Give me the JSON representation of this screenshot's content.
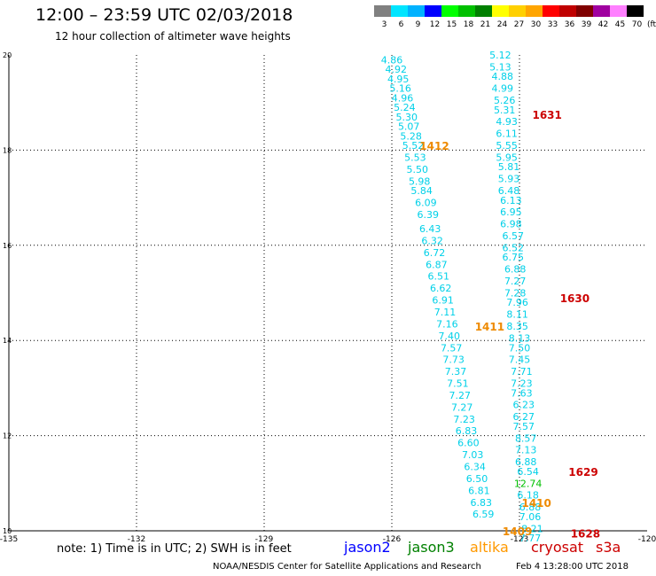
{
  "header": {
    "title": "12:00 – 23:59 UTC 02/03/2018",
    "subtitle": "12 hour collection of altimeter wave heights"
  },
  "colorbar": {
    "unit": "(ft)",
    "ticks": [
      "3",
      "6",
      "9",
      "12",
      "15",
      "18",
      "21",
      "24",
      "27",
      "30",
      "33",
      "36",
      "39",
      "42",
      "45",
      "70"
    ],
    "colors": [
      "#808080",
      "#00e5ff",
      "#00b2ff",
      "#0000ff",
      "#00ff00",
      "#00c000",
      "#008000",
      "#ffff00",
      "#ffd000",
      "#ffa500",
      "#ff0000",
      "#c00000",
      "#800000",
      "#a000a0",
      "#ff80ff",
      "#000000"
    ]
  },
  "footer": {
    "note": "note:  1) Time is in UTC;  2) SWH is in feet",
    "satellites": [
      {
        "name": "jason2",
        "color": "#0000ff"
      },
      {
        "name": "jason3",
        "color": "#008000"
      },
      {
        "name": "altika",
        "color": "#ff9900"
      },
      {
        "name": "cryosat",
        "color": "#cc0000"
      },
      {
        "name": "s3a",
        "color": "#cc0000"
      }
    ],
    "credit": "NOAA/NESDIS Center for Satellite Applications and Research",
    "generated": "Feb  4 13:28:00 UTC 2018"
  },
  "chart_data": {
    "type": "scatter",
    "title": "12:00 – 23:59 UTC 02/03/2018",
    "subtitle": "12 hour collection of altimeter wave heights",
    "xlabel": "",
    "ylabel": "",
    "xlim": [
      -135,
      -120
    ],
    "ylim": [
      10,
      20
    ],
    "x_ticks": [
      "-135",
      "-132",
      "-129",
      "-126",
      "-123",
      "-120"
    ],
    "y_ticks": [
      "10",
      "12",
      "14",
      "16",
      "18",
      "20"
    ],
    "grid": true,
    "series": [
      {
        "name": "altika",
        "color": "#00d0e8",
        "points": [
          {
            "x": -126.0,
            "y": 19.9,
            "label": "4.86"
          },
          {
            "x": -125.9,
            "y": 19.7,
            "label": "4.92"
          },
          {
            "x": -125.85,
            "y": 19.5,
            "label": "4.95"
          },
          {
            "x": -125.8,
            "y": 19.3,
            "label": "5.16"
          },
          {
            "x": -125.75,
            "y": 19.1,
            "label": "4.96"
          },
          {
            "x": -125.7,
            "y": 18.9,
            "label": "5.24"
          },
          {
            "x": -125.65,
            "y": 18.7,
            "label": "5.30"
          },
          {
            "x": -125.6,
            "y": 18.5,
            "label": "5.07"
          },
          {
            "x": -125.55,
            "y": 18.3,
            "label": "5.28"
          },
          {
            "x": -125.5,
            "y": 18.1,
            "label": "5.52"
          },
          {
            "x": -125.45,
            "y": 17.85,
            "label": "5.53"
          },
          {
            "x": -125.4,
            "y": 17.6,
            "label": "5.50"
          },
          {
            "x": -125.35,
            "y": 17.35,
            "label": "5.98"
          },
          {
            "x": -125.3,
            "y": 17.15,
            "label": "5.84"
          },
          {
            "x": -125.2,
            "y": 16.9,
            "label": "6.09"
          },
          {
            "x": -125.15,
            "y": 16.65,
            "label": "6.39"
          },
          {
            "x": -125.1,
            "y": 16.35,
            "label": "6.43"
          },
          {
            "x": -125.05,
            "y": 16.1,
            "label": "6.32"
          },
          {
            "x": -125.0,
            "y": 15.85,
            "label": "6.72"
          },
          {
            "x": -124.95,
            "y": 15.6,
            "label": "6.87"
          },
          {
            "x": -124.9,
            "y": 15.35,
            "label": "6.51"
          },
          {
            "x": -124.85,
            "y": 15.1,
            "label": "6.62"
          },
          {
            "x": -124.8,
            "y": 14.85,
            "label": "6.91"
          },
          {
            "x": -124.75,
            "y": 14.6,
            "label": "7.11"
          },
          {
            "x": -124.7,
            "y": 14.35,
            "label": "7.16"
          },
          {
            "x": -124.65,
            "y": 14.1,
            "label": "7.40"
          },
          {
            "x": -124.6,
            "y": 13.85,
            "label": "7.57"
          },
          {
            "x": -124.55,
            "y": 13.6,
            "label": "7.73"
          },
          {
            "x": -124.5,
            "y": 13.35,
            "label": "7.37"
          },
          {
            "x": -124.45,
            "y": 13.1,
            "label": "7.51"
          },
          {
            "x": -124.4,
            "y": 12.85,
            "label": "7.27"
          },
          {
            "x": -124.35,
            "y": 12.6,
            "label": "7.27"
          },
          {
            "x": -124.3,
            "y": 12.35,
            "label": "7.23"
          },
          {
            "x": -124.25,
            "y": 12.1,
            "label": "6.83"
          },
          {
            "x": -124.2,
            "y": 11.85,
            "label": "6.60"
          },
          {
            "x": -124.1,
            "y": 11.6,
            "label": "7.03"
          },
          {
            "x": -124.05,
            "y": 11.35,
            "label": "6.34"
          },
          {
            "x": -124.0,
            "y": 11.1,
            "label": "6.50"
          },
          {
            "x": -123.95,
            "y": 10.85,
            "label": "6.81"
          },
          {
            "x": -123.9,
            "y": 10.6,
            "label": "6.83"
          },
          {
            "x": -123.85,
            "y": 10.35,
            "label": "6.59"
          }
        ]
      },
      {
        "name": "jason3",
        "color": "#00d0e8",
        "points": [
          {
            "x": -123.45,
            "y": 20.0,
            "label": "5.12"
          },
          {
            "x": -123.45,
            "y": 19.75,
            "label": "5.13"
          },
          {
            "x": -123.4,
            "y": 19.55,
            "label": "4.88"
          },
          {
            "x": -123.4,
            "y": 19.3,
            "label": "4.99"
          },
          {
            "x": -123.35,
            "y": 19.05,
            "label": "5.26"
          },
          {
            "x": -123.35,
            "y": 18.85,
            "label": "5.31"
          },
          {
            "x": -123.3,
            "y": 18.6,
            "label": "4.93"
          },
          {
            "x": -123.3,
            "y": 18.35,
            "label": "6.11"
          },
          {
            "x": -123.3,
            "y": 18.1,
            "label": "5.55"
          },
          {
            "x": -123.3,
            "y": 17.85,
            "label": "5.95"
          },
          {
            "x": -123.25,
            "y": 17.65,
            "label": "5.81"
          },
          {
            "x": -123.25,
            "y": 17.4,
            "label": "5.93"
          },
          {
            "x": -123.25,
            "y": 17.15,
            "label": "6.48"
          },
          {
            "x": -123.2,
            "y": 16.95,
            "label": "6.13"
          },
          {
            "x": -123.2,
            "y": 16.7,
            "label": "6.95"
          },
          {
            "x": -123.2,
            "y": 16.45,
            "label": "6.98"
          },
          {
            "x": -123.15,
            "y": 16.2,
            "label": "6.57"
          },
          {
            "x": -123.15,
            "y": 15.95,
            "label": "6.52"
          },
          {
            "x": -123.15,
            "y": 15.75,
            "label": "6.75"
          },
          {
            "x": -123.1,
            "y": 15.5,
            "label": "6.88"
          },
          {
            "x": -123.1,
            "y": 15.25,
            "label": "7.27"
          },
          {
            "x": -123.1,
            "y": 15.0,
            "label": "7.28"
          },
          {
            "x": -123.05,
            "y": 14.8,
            "label": "7.96"
          },
          {
            "x": -123.05,
            "y": 14.55,
            "label": "8.11"
          },
          {
            "x": -123.05,
            "y": 14.3,
            "label": "8.35"
          },
          {
            "x": -123.0,
            "y": 14.05,
            "label": "8.13"
          },
          {
            "x": -123.0,
            "y": 13.85,
            "label": "7.50"
          },
          {
            "x": -123.0,
            "y": 13.6,
            "label": "7.45"
          },
          {
            "x": -122.95,
            "y": 13.35,
            "label": "7.71"
          },
          {
            "x": -122.95,
            "y": 13.1,
            "label": "7.23"
          },
          {
            "x": -122.95,
            "y": 12.9,
            "label": "7.63"
          },
          {
            "x": -122.9,
            "y": 12.65,
            "label": "6.23"
          },
          {
            "x": -122.9,
            "y": 12.4,
            "label": "6.27"
          },
          {
            "x": -122.9,
            "y": 12.2,
            "label": "7.57"
          },
          {
            "x": -122.85,
            "y": 11.95,
            "label": "8.57"
          },
          {
            "x": -122.85,
            "y": 11.7,
            "label": "7.13"
          },
          {
            "x": -122.85,
            "y": 11.45,
            "label": "6.88"
          },
          {
            "x": -122.8,
            "y": 11.25,
            "label": "6.54"
          },
          {
            "x": -122.8,
            "y": 11.0,
            "label": "12.74"
          },
          {
            "x": -122.8,
            "y": 10.75,
            "label": "6.18"
          },
          {
            "x": -122.75,
            "y": 10.5,
            "label": "6.88"
          },
          {
            "x": -122.75,
            "y": 10.3,
            "label": "7.06"
          },
          {
            "x": -122.7,
            "y": 10.05,
            "label": "8.21"
          },
          {
            "x": -122.75,
            "y": 9.85,
            "label": "7.77"
          }
        ]
      }
    ],
    "time_annotations": [
      {
        "label": "1412",
        "x": -125.0,
        "y": 18.1,
        "color": "#ee8a00"
      },
      {
        "label": "1411",
        "x": -123.7,
        "y": 14.3,
        "color": "#ee8a00"
      },
      {
        "label": "1410",
        "x": -122.6,
        "y": 10.6,
        "color": "#ee8a00"
      },
      {
        "label": "1409",
        "x": -123.05,
        "y": 10.0,
        "color": "#ee8a00"
      },
      {
        "label": "1631",
        "x": -122.35,
        "y": 18.75,
        "color": "#cc0000"
      },
      {
        "label": "1630",
        "x": -121.7,
        "y": 14.9,
        "color": "#cc0000"
      },
      {
        "label": "1629",
        "x": -121.5,
        "y": 11.25,
        "color": "#cc0000"
      },
      {
        "label": "1628",
        "x": -121.45,
        "y": 9.95,
        "color": "#cc0000"
      }
    ]
  }
}
